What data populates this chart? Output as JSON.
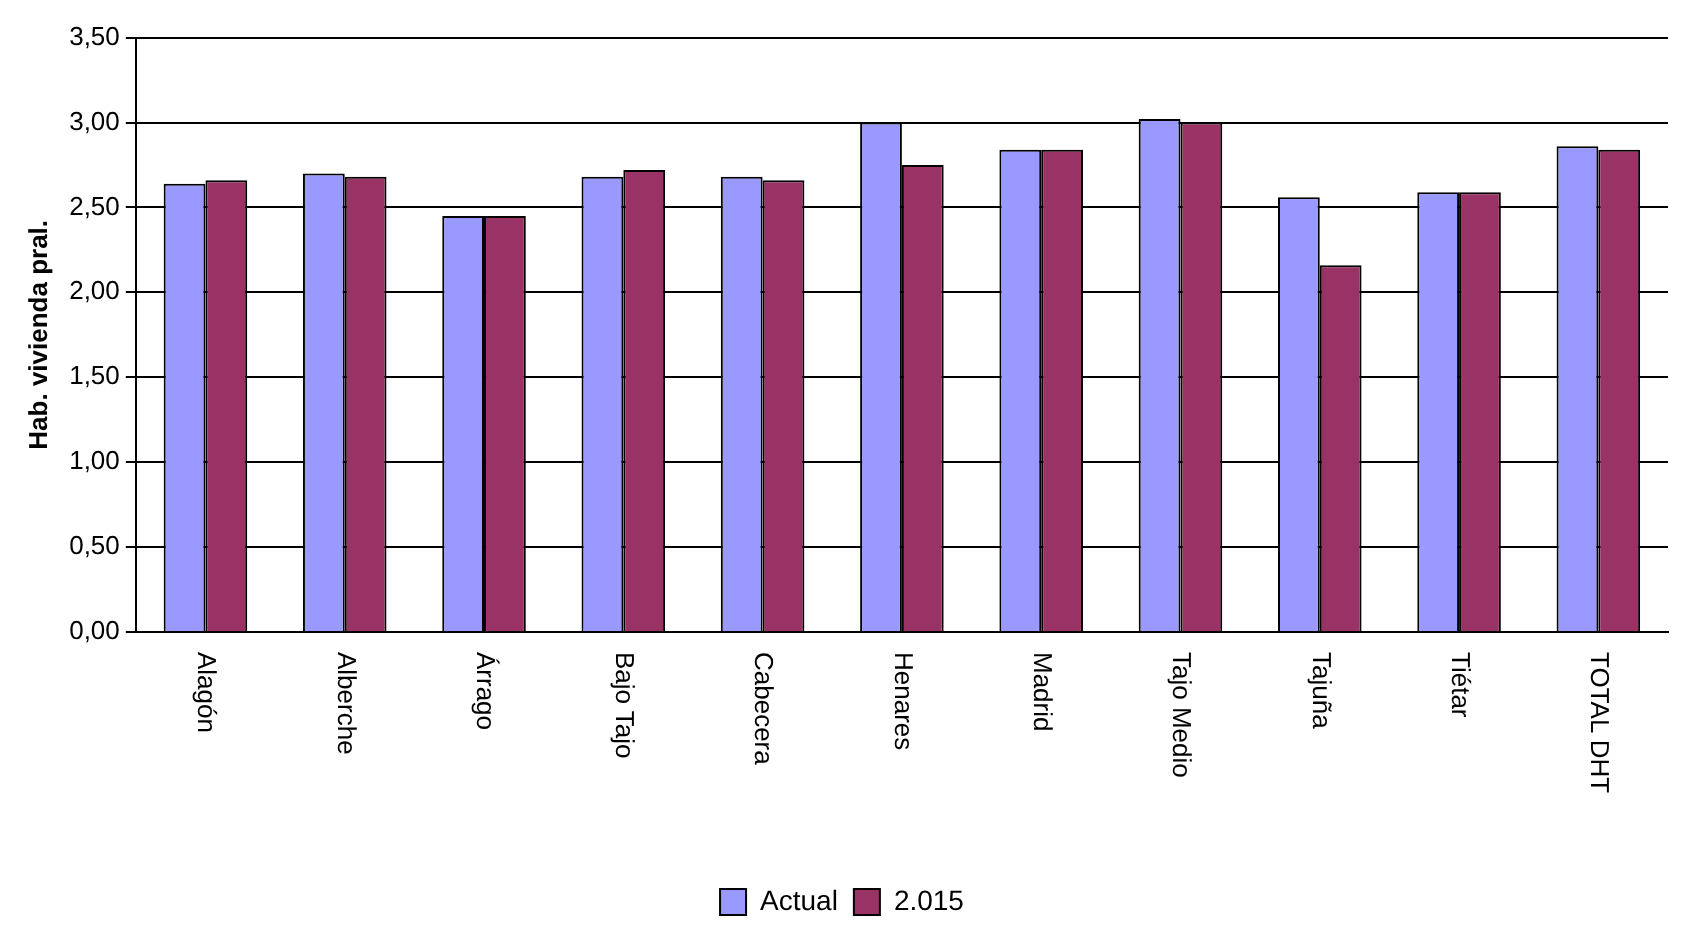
{
  "chart_data": {
    "type": "bar",
    "ylabel": "Hab. vivienda pral.",
    "categories": [
      "Alagón",
      "Alberche",
      "Árrago",
      "Bajo Tajo",
      "Cabecera",
      "Henares",
      "Madrid",
      "Tajo Medio",
      "Tajuña",
      "Tiétar",
      "TOTAL DHT"
    ],
    "series": [
      {
        "name": "Actual",
        "color": "#9999ff",
        "values": [
          2.64,
          2.7,
          2.45,
          2.68,
          2.68,
          3.0,
          2.84,
          3.02,
          2.56,
          2.59,
          2.86
        ]
      },
      {
        "name": "2.015",
        "color": "#993366",
        "values": [
          2.66,
          2.68,
          2.45,
          2.72,
          2.66,
          2.75,
          2.84,
          3.0,
          2.16,
          2.59,
          2.84
        ]
      }
    ],
    "ylim": [
      0,
      3.5
    ],
    "yticks": [
      {
        "value": 0,
        "label": "0,00"
      },
      {
        "value": 0.5,
        "label": "0,50"
      },
      {
        "value": 1,
        "label": "1,00"
      },
      {
        "value": 1.5,
        "label": "1,50"
      },
      {
        "value": 2,
        "label": "2,00"
      },
      {
        "value": 2.5,
        "label": "2,50"
      },
      {
        "value": 3,
        "label": "3,00"
      },
      {
        "value": 3.5,
        "label": "3,50"
      }
    ],
    "grid": "y",
    "legend": "bottom"
  }
}
